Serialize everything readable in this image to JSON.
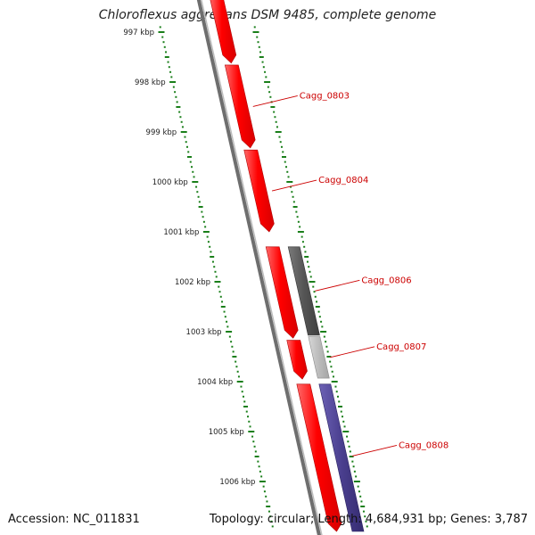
{
  "title": "Chloroflexus aggregans DSM 9485, complete genome",
  "accession_text": "Accession: NC_011831",
  "stats_text": "Topology: circular; Length: 4,684,931 bp; Genes: 3,787",
  "colors": {
    "backbone": "#707070",
    "forward_gene": "#ff0000",
    "pseudo_gene": "#555555",
    "rna_gene": "#bbbbbb",
    "reverse_gene": "#4a3f8f",
    "tick": "#1a7f1a",
    "label": "#cc0000"
  },
  "ruler": [
    {
      "label": "997 kbp",
      "kbp": 997
    },
    {
      "label": "998 kbp",
      "kbp": 998
    },
    {
      "label": "999 kbp",
      "kbp": 999
    },
    {
      "label": "1000 kbp",
      "kbp": 1000
    },
    {
      "label": "1001 kbp",
      "kbp": 1001
    },
    {
      "label": "1002 kbp",
      "kbp": 1002
    },
    {
      "label": "1003 kbp",
      "kbp": 1003
    },
    {
      "label": "1004 kbp",
      "kbp": 1004
    },
    {
      "label": "1005 kbp",
      "kbp": 1005
    },
    {
      "label": "1006 kbp",
      "kbp": 1006
    }
  ],
  "genes": [
    {
      "label": "",
      "start_kbp": 996.3,
      "end_kbp": 997.62,
      "lane": "inner",
      "kind": "forward"
    },
    {
      "label": "Cagg_0803",
      "start_kbp": 997.66,
      "end_kbp": 999.32,
      "lane": "inner",
      "kind": "forward"
    },
    {
      "label": "Cagg_0804",
      "start_kbp": 999.36,
      "end_kbp": 1001.0,
      "lane": "inner",
      "kind": "forward"
    },
    {
      "label": "",
      "start_kbp": 1001.3,
      "end_kbp": 1003.13,
      "lane": "inner",
      "kind": "forward"
    },
    {
      "label": "Cagg_0806",
      "start_kbp": 1001.3,
      "end_kbp": 1003.07,
      "lane": "outer",
      "kind": "pseudo"
    },
    {
      "label": "",
      "start_kbp": 1003.17,
      "end_kbp": 1003.95,
      "lane": "inner",
      "kind": "forward"
    },
    {
      "label": "Cagg_0807",
      "start_kbp": 1003.1,
      "end_kbp": 1003.93,
      "lane": "outer",
      "kind": "rna"
    },
    {
      "label": "",
      "start_kbp": 1004.05,
      "end_kbp": 1007.0,
      "lane": "inner",
      "kind": "forward"
    },
    {
      "label": "Cagg_0808",
      "start_kbp": 1004.05,
      "end_kbp": 1007.0,
      "lane": "outer",
      "kind": "reverse"
    }
  ]
}
